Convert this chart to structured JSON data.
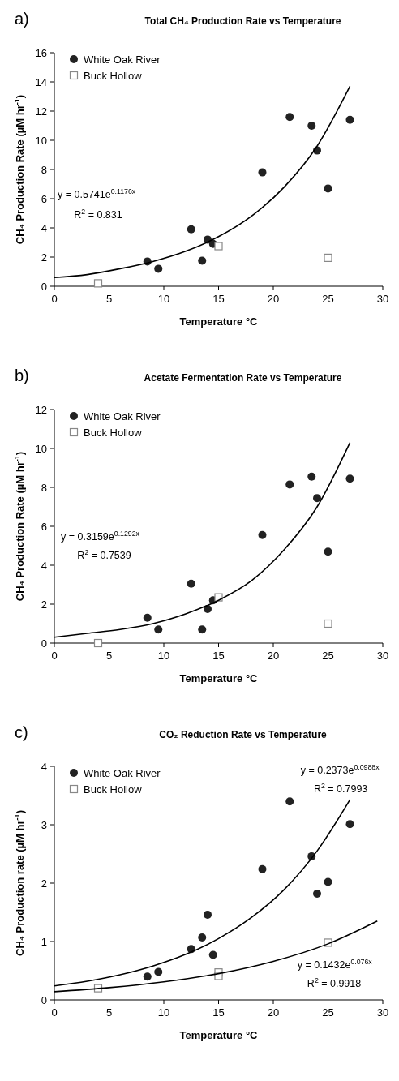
{
  "chart_data": [
    {
      "type": "scatter",
      "title": "Total CH₄ Production Rate vs Temperature",
      "xlabel": "Temperature °C",
      "ylabel": "CH₄ Production Rate (µM hr$^{-1}$)",
      "xlim": [
        0,
        30
      ],
      "xticks": [
        0,
        5,
        10,
        15,
        20,
        25,
        30
      ],
      "ylim": [
        0,
        16
      ],
      "yticks": [
        0,
        2,
        4,
        6,
        8,
        10,
        12,
        14,
        16
      ],
      "grid": false,
      "legend": "top left",
      "annotations": [
        "a)",
        "y = 0.5741e$^{0.1176x}$",
        "R$^{2}$ = 0.831"
      ],
      "series": [
        {
          "name": "White Oak River",
          "marker": "circle",
          "color": "#222222",
          "x": [
            8.5,
            9.5,
            12.5,
            13.5,
            14,
            14.5,
            19,
            21.5,
            23.5,
            24,
            25,
            27
          ],
          "values": [
            1.7,
            1.2,
            3.9,
            1.75,
            3.2,
            2.9,
            7.8,
            11.6,
            11.0,
            9.3,
            6.7,
            11.4
          ]
        },
        {
          "name": "Buck Hollow",
          "marker": "square",
          "color": "#888888",
          "x": [
            4,
            15,
            25
          ],
          "values": [
            0.2,
            2.75,
            1.95
          ]
        },
        {
          "type": "line",
          "marker": "none",
          "line_style": "solid",
          "color": "#000000",
          "x": [
            0,
            3,
            6,
            9,
            12,
            15,
            18,
            21,
            24,
            27
          ],
          "values": [
            0.6,
            0.8,
            1.2,
            1.7,
            2.4,
            3.4,
            4.8,
            6.8,
            9.6,
            13.7
          ]
        }
      ]
    },
    {
      "type": "scatter",
      "title": "Acetate Fermentation Rate vs Temperature",
      "xlabel": "Temperature °C",
      "ylabel": "CH₄ Production Rate (µM hr$^{-1}$)",
      "xlim": [
        0,
        30
      ],
      "xticks": [
        0,
        5,
        10,
        15,
        20,
        25,
        30
      ],
      "ylim": [
        0,
        12
      ],
      "yticks": [
        0,
        2,
        4,
        6,
        8,
        10,
        12
      ],
      "grid": false,
      "legend": "top left",
      "annotations": [
        "b)",
        "y = 0.3159e$^{0.1292x}$",
        "R$^{2}$ = 0.7539"
      ],
      "series": [
        {
          "name": "White Oak River",
          "marker": "circle",
          "color": "#222222",
          "x": [
            8.5,
            9.5,
            12.5,
            13.5,
            14,
            14.5,
            19,
            21.5,
            23.5,
            24,
            25,
            27
          ],
          "values": [
            1.3,
            0.7,
            3.05,
            0.7,
            1.75,
            2.2,
            5.55,
            8.15,
            8.55,
            7.45,
            4.7,
            8.45
          ]
        },
        {
          "name": "Buck Hollow",
          "marker": "square",
          "color": "#888888",
          "x": [
            4,
            15,
            25
          ],
          "values": [
            0,
            2.35,
            1.0
          ]
        },
        {
          "type": "line",
          "marker": "none",
          "line_style": "solid",
          "color": "#000000",
          "x": [
            0,
            3,
            6,
            9,
            12,
            15,
            18,
            21,
            24,
            27
          ],
          "values": [
            0.3,
            0.5,
            0.7,
            1.0,
            1.5,
            2.2,
            3.2,
            4.8,
            7.0,
            10.3
          ]
        }
      ]
    },
    {
      "type": "scatter",
      "title": "CO₂ Reduction Rate vs Temperature",
      "xlabel": "Temperature °C",
      "ylabel": "CH₄ Production rate (µM hr$^{-1}$)",
      "xlim": [
        0,
        30
      ],
      "xticks": [
        0,
        5,
        10,
        15,
        20,
        25,
        30
      ],
      "ylim": [
        0,
        4
      ],
      "yticks": [
        0,
        1,
        2,
        3,
        4
      ],
      "grid": false,
      "legend": "top left",
      "annotations": [
        "c)",
        "y = 0.2373e$^{0.0988x}$",
        "R$^{2}$ = 0.7993",
        "y = 0.1432e$^{0.076x}$",
        "R$^{2}$ = 0.9918"
      ],
      "series": [
        {
          "name": "White Oak River",
          "marker": "circle",
          "color": "#222222",
          "x": [
            8.5,
            9.5,
            12.5,
            13.5,
            14,
            14.5,
            19,
            21.5,
            23.5,
            24,
            25,
            27
          ],
          "values": [
            0.4,
            0.48,
            0.87,
            1.07,
            1.46,
            0.77,
            2.24,
            3.4,
            2.46,
            1.82,
            2.02,
            3.01
          ]
        },
        {
          "name": "Buck Hollow",
          "marker": "square",
          "color": "#888888",
          "x": [
            4,
            15,
            15,
            25
          ],
          "values": [
            0.2,
            0.47,
            0.41,
            0.98
          ]
        },
        {
          "type": "line",
          "marker": "none",
          "line_style": "solid",
          "color": "#000000",
          "x": [
            0,
            3,
            6,
            9,
            12,
            15,
            18,
            21,
            24,
            27
          ],
          "values": [
            0.24,
            0.32,
            0.43,
            0.58,
            0.78,
            1.05,
            1.41,
            1.89,
            2.55,
            3.43
          ]
        },
        {
          "type": "line",
          "marker": "none",
          "line_style": "solid",
          "color": "#000000",
          "x": [
            0,
            5,
            10,
            15,
            20,
            25,
            29.5
          ],
          "values": [
            0.14,
            0.21,
            0.31,
            0.45,
            0.66,
            0.96,
            1.35
          ]
        }
      ]
    }
  ]
}
